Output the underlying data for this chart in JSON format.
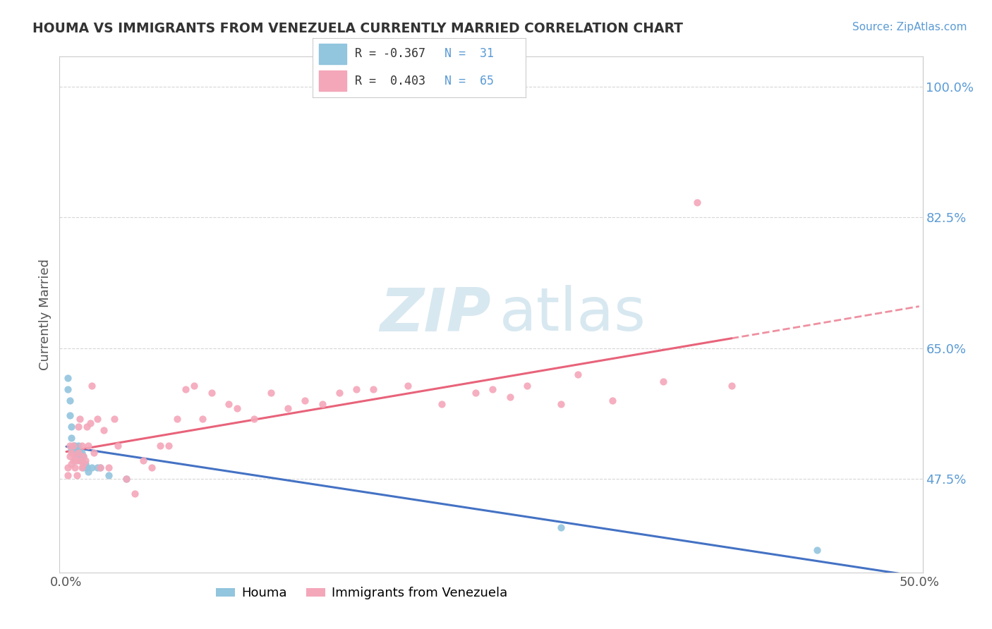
{
  "title": "HOUMA VS IMMIGRANTS FROM VENEZUELA CURRENTLY MARRIED CORRELATION CHART",
  "source": "Source: ZipAtlas.com",
  "xlabel_houma": "Houma",
  "xlabel_venezuela": "Immigrants from Venezuela",
  "ylabel": "Currently Married",
  "houma_color": "#92C5DE",
  "venezuela_color": "#F4A7B9",
  "houma_line_color": "#4472C4",
  "venezuela_line_color": "#E8637A",
  "background_color": "#FFFFFF",
  "grid_color": "#CCCCCC",
  "houma_x": [
    0.001,
    0.001,
    0.002,
    0.002,
    0.003,
    0.003,
    0.003,
    0.004,
    0.004,
    0.005,
    0.005,
    0.005,
    0.006,
    0.006,
    0.007,
    0.007,
    0.008,
    0.008,
    0.009,
    0.009,
    0.01,
    0.01,
    0.011,
    0.012,
    0.013,
    0.015,
    0.018,
    0.02,
    0.025,
    0.035,
    0.29,
    0.44
  ],
  "houma_y": [
    0.595,
    0.61,
    0.58,
    0.56,
    0.545,
    0.53,
    0.515,
    0.51,
    0.52,
    0.51,
    0.5,
    0.52,
    0.505,
    0.515,
    0.505,
    0.52,
    0.51,
    0.5,
    0.51,
    0.5,
    0.505,
    0.49,
    0.495,
    0.49,
    0.485,
    0.49,
    0.49,
    0.49,
    0.48,
    0.475,
    0.41,
    0.38
  ],
  "venezuela_x": [
    0.001,
    0.001,
    0.002,
    0.002,
    0.003,
    0.003,
    0.004,
    0.004,
    0.005,
    0.005,
    0.006,
    0.006,
    0.007,
    0.007,
    0.008,
    0.008,
    0.009,
    0.009,
    0.01,
    0.01,
    0.011,
    0.012,
    0.013,
    0.014,
    0.015,
    0.016,
    0.018,
    0.02,
    0.022,
    0.025,
    0.028,
    0.03,
    0.035,
    0.04,
    0.05,
    0.06,
    0.07,
    0.08,
    0.095,
    0.11,
    0.13,
    0.15,
    0.17,
    0.2,
    0.22,
    0.25,
    0.27,
    0.3,
    0.32,
    0.35,
    0.37,
    0.39,
    0.29,
    0.24,
    0.26,
    0.18,
    0.16,
    0.14,
    0.12,
    0.1,
    0.045,
    0.055,
    0.065,
    0.075,
    0.085
  ],
  "venezuela_y": [
    0.49,
    0.48,
    0.505,
    0.52,
    0.495,
    0.51,
    0.5,
    0.52,
    0.49,
    0.505,
    0.48,
    0.5,
    0.51,
    0.545,
    0.555,
    0.5,
    0.49,
    0.52,
    0.505,
    0.495,
    0.5,
    0.545,
    0.52,
    0.55,
    0.6,
    0.51,
    0.555,
    0.49,
    0.54,
    0.49,
    0.555,
    0.52,
    0.475,
    0.455,
    0.49,
    0.52,
    0.595,
    0.555,
    0.575,
    0.555,
    0.57,
    0.575,
    0.595,
    0.6,
    0.575,
    0.595,
    0.6,
    0.615,
    0.58,
    0.605,
    0.845,
    0.6,
    0.575,
    0.59,
    0.585,
    0.595,
    0.59,
    0.58,
    0.59,
    0.57,
    0.5,
    0.52,
    0.555,
    0.6,
    0.59
  ],
  "ytick_positions": [
    0.475,
    0.65,
    0.825,
    1.0
  ],
  "ytick_labels": [
    "47.5%",
    "65.0%",
    "82.5%",
    "100.0%"
  ],
  "xmin": 0.0,
  "xmax": 0.5,
  "ymin": 0.35,
  "ymax": 1.04
}
